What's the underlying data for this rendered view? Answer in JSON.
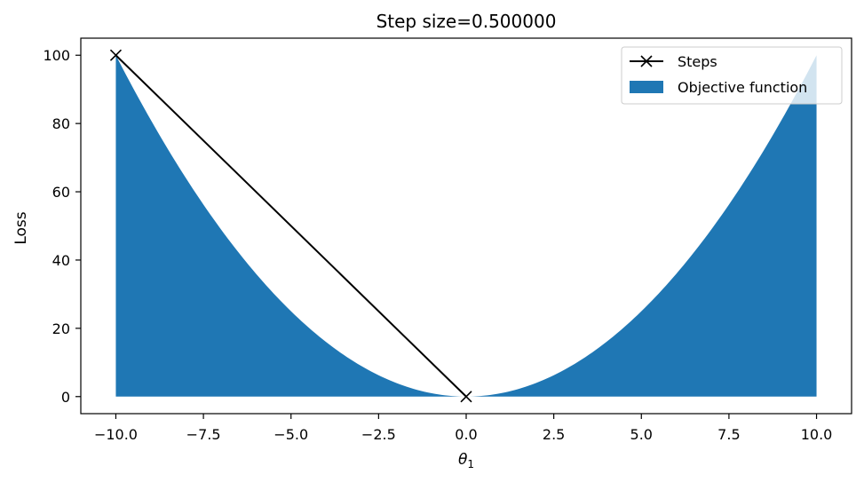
{
  "chart_data": {
    "type": "area",
    "title": "Step size=0.500000",
    "xlabel": "θ",
    "xlabel_subscript": "1",
    "ylabel": "Loss",
    "xlim": [
      -11,
      11
    ],
    "ylim": [
      -5,
      105
    ],
    "xticks": [
      -10.0,
      -7.5,
      -5.0,
      -2.5,
      0.0,
      2.5,
      5.0,
      7.5,
      10.0
    ],
    "xtick_labels": [
      "−10.0",
      "−7.5",
      "−5.0",
      "−2.5",
      "0.0",
      "2.5",
      "5.0",
      "7.5",
      "10.0"
    ],
    "yticks": [
      0,
      20,
      40,
      60,
      80,
      100
    ],
    "ytick_labels": [
      "0",
      "20",
      "40",
      "60",
      "80",
      "100"
    ],
    "grid": false,
    "legend_position": "top-right",
    "series": [
      {
        "name": "Steps",
        "kind": "line",
        "marker": "x",
        "color": "#000000",
        "x": [
          -10,
          0
        ],
        "y": [
          100,
          0
        ]
      },
      {
        "name": "Objective function",
        "kind": "fill",
        "color": "#1f77b4",
        "function": "x^2",
        "x_range": [
          -10,
          10
        ]
      }
    ]
  }
}
